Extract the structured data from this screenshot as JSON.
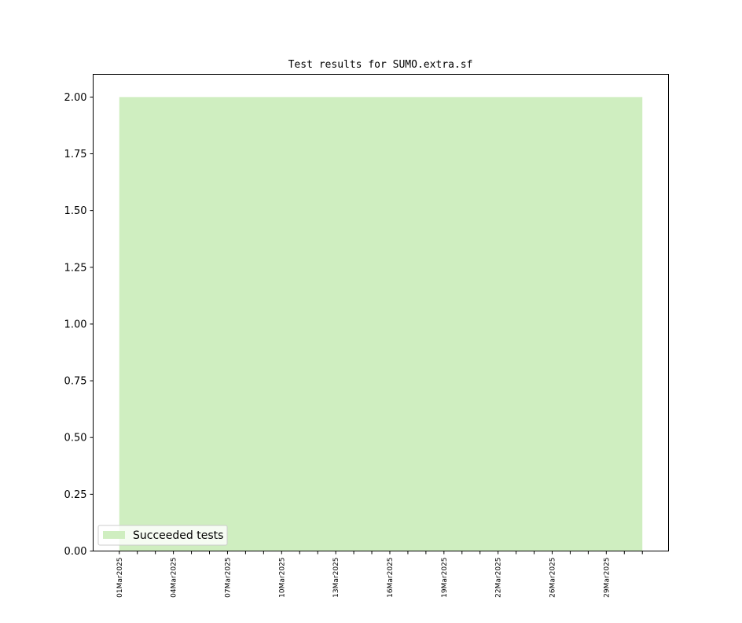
{
  "chart_data": {
    "type": "area",
    "title": "Test results for SUMO.extra.sf",
    "xlabel": "",
    "ylabel": "",
    "x": [
      "01Mar2025",
      "02Mar2025",
      "03Mar2025",
      "04Mar2025",
      "05Mar2025",
      "06Mar2025",
      "07Mar2025",
      "08Mar2025",
      "09Mar2025",
      "10Mar2025",
      "11Mar2025",
      "12Mar2025",
      "13Mar2025",
      "14Mar2025",
      "15Mar2025",
      "16Mar2025",
      "17Mar2025",
      "18Mar2025",
      "19Mar2025",
      "20Mar2025",
      "21Mar2025",
      "22Mar2025",
      "23Mar2025",
      "25Mar2025",
      "26Mar2025",
      "27Mar2025",
      "28Mar2025",
      "29Mar2025",
      "30Mar2025",
      "31Mar2025"
    ],
    "x_tick_labels": [
      "01Mar2025",
      "04Mar2025",
      "07Mar2025",
      "10Mar2025",
      "13Mar2025",
      "16Mar2025",
      "19Mar2025",
      "22Mar2025",
      "26Mar2025",
      "29Mar2025"
    ],
    "y_ticks": [
      "0.00",
      "0.25",
      "0.50",
      "0.75",
      "1.00",
      "1.25",
      "1.50",
      "1.75",
      "2.00"
    ],
    "ylim": [
      0,
      2.1
    ],
    "grid": false,
    "legend_placement": "lower-left",
    "series": [
      {
        "name": "Succeeded tests",
        "color": "#cfeec0",
        "values": [
          2,
          2,
          2,
          2,
          2,
          2,
          2,
          2,
          2,
          2,
          2,
          2,
          2,
          2,
          2,
          2,
          2,
          2,
          2,
          2,
          2,
          2,
          2,
          2,
          2,
          2,
          2,
          2,
          2,
          2
        ]
      }
    ]
  }
}
